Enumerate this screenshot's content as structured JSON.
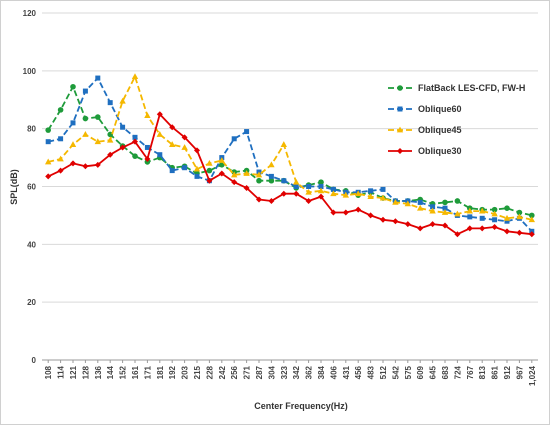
{
  "chart_data": {
    "type": "line",
    "xlabel": "Center Frequency(Hz)",
    "ylabel": "SPL(dB)",
    "ylim": [
      0,
      120
    ],
    "yticks": [
      0,
      20,
      40,
      60,
      80,
      100,
      120
    ],
    "grid": "horizontal",
    "legend_position": "right",
    "categories": [
      "108",
      "114",
      "121",
      "128",
      "136",
      "144",
      "152",
      "161",
      "171",
      "181",
      "192",
      "203",
      "215",
      "228",
      "242",
      "256",
      "271",
      "287",
      "304",
      "323",
      "342",
      "362",
      "384",
      "406",
      "431",
      "456",
      "483",
      "512",
      "542",
      "575",
      "609",
      "645",
      "683",
      "724",
      "767",
      "813",
      "861",
      "912",
      "967",
      "1,024"
    ],
    "series": [
      {
        "name": "FlatBack LES-CFD, FW-H",
        "color": "#1e9b3a",
        "dash": "6,3",
        "marker": "circle",
        "values": [
          79.5,
          86.5,
          94.5,
          83.5,
          84,
          78,
          74,
          70.5,
          68.5,
          70,
          66.5,
          67,
          64.5,
          65.5,
          67.5,
          65,
          65.5,
          62,
          62,
          62,
          59.5,
          60.5,
          61.5,
          59,
          58.5,
          57,
          58,
          56,
          55,
          55,
          55.5,
          54,
          54.5,
          55,
          52.5,
          52,
          52,
          52.5,
          51,
          50
        ]
      },
      {
        "name": "Oblique60",
        "color": "#1f6fc0",
        "dash": "6,3",
        "marker": "square",
        "values": [
          75.5,
          76.5,
          82,
          93,
          97.5,
          89,
          80.5,
          77,
          73.5,
          71,
          65.5,
          66.5,
          63.5,
          62,
          70,
          76.5,
          79,
          65,
          63.5,
          62,
          60,
          60,
          60,
          59,
          58,
          58,
          58.5,
          59,
          55,
          55,
          54.5,
          53,
          52.5,
          50,
          49.5,
          49,
          48.5,
          48,
          49,
          44.5
        ]
      },
      {
        "name": "Oblique45",
        "color": "#f5b800",
        "dash": "6,3",
        "marker": "triangle",
        "values": [
          68.5,
          69.5,
          74.5,
          78,
          75.5,
          76,
          89.5,
          98,
          84.5,
          78,
          74.5,
          73.5,
          66,
          68,
          69,
          64,
          64.5,
          64,
          67.5,
          74.5,
          61.5,
          58,
          58.5,
          57.5,
          57,
          57.5,
          56.5,
          56,
          54.5,
          54,
          52.5,
          51.5,
          51,
          50.5,
          51.5,
          51.5,
          50.5,
          49,
          49.5,
          48.5
        ]
      },
      {
        "name": "Oblique30",
        "color": "#e00000",
        "dash": "",
        "marker": "diamond",
        "values": [
          63.5,
          65.5,
          68,
          67,
          67.5,
          71,
          73.5,
          75.5,
          69.5,
          85,
          80.5,
          77,
          72.5,
          62,
          64.5,
          61.5,
          59.5,
          55.5,
          55,
          57.5,
          57.5,
          55,
          56.5,
          51,
          51,
          52,
          50,
          48.5,
          48,
          47,
          45.5,
          47,
          46.5,
          43.5,
          45.5,
          45.5,
          46,
          44.5,
          44,
          43.5
        ]
      }
    ]
  }
}
